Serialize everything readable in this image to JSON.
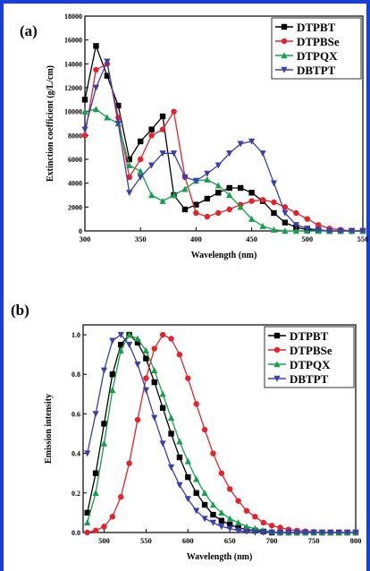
{
  "chart_data": [
    {
      "type": "line",
      "panel_label": "(a)",
      "x_label": "Wavelength (nm)",
      "y_label": "Extinction coefficient (g/L/cm)",
      "x": [
        300,
        310,
        320,
        330,
        340,
        350,
        360,
        370,
        380,
        390,
        400,
        410,
        420,
        430,
        440,
        450,
        460,
        470,
        480,
        490,
        500,
        510,
        520,
        530,
        540,
        550
      ],
      "series": [
        {
          "name": "DTPBT",
          "color": "#000000",
          "marker": "square",
          "values": [
            11000,
            15500,
            13000,
            10500,
            6000,
            7500,
            8500,
            9600,
            3000,
            1800,
            2200,
            2700,
            3200,
            3600,
            3600,
            3200,
            2500,
            1500,
            700,
            300,
            100,
            50,
            0,
            0,
            0,
            0
          ]
        },
        {
          "name": "DTPBSe",
          "color": "#e8202a",
          "marker": "circle",
          "values": [
            8000,
            13500,
            14000,
            9500,
            4500,
            6000,
            8000,
            8500,
            10000,
            4500,
            1500,
            1200,
            1500,
            1800,
            2200,
            2500,
            2600,
            2400,
            2000,
            1500,
            1000,
            500,
            200,
            100,
            0,
            0
          ]
        },
        {
          "name": "DTPQX",
          "color": "#12a04a",
          "marker": "triangle-up",
          "values": [
            10000,
            10200,
            9500,
            9000,
            5500,
            5000,
            3000,
            2500,
            3000,
            3500,
            4200,
            4300,
            3800,
            3000,
            2000,
            1000,
            400,
            100,
            0,
            0,
            0,
            0,
            0,
            0,
            0,
            0
          ]
        },
        {
          "name": "DBTPT",
          "color": "#3a3fb0",
          "marker": "triangle-down",
          "values": [
            8500,
            12000,
            14200,
            9000,
            3200,
            4500,
            5500,
            6500,
            6500,
            4500,
            4200,
            4800,
            5500,
            6500,
            7300,
            7500,
            6500,
            4000,
            1500,
            500,
            200,
            100,
            0,
            0,
            0,
            0
          ]
        }
      ],
      "xlim": [
        300,
        550
      ],
      "xticks": [
        300,
        350,
        400,
        450,
        500,
        550
      ],
      "ylim": [
        0,
        18000
      ],
      "yticks": [
        0,
        2000,
        4000,
        6000,
        8000,
        10000,
        12000,
        14000,
        16000,
        18000
      ],
      "legend": "upper right"
    },
    {
      "type": "line",
      "panel_label": "(b)",
      "x_label": "Wavelength (nm)",
      "y_label": "Emission intensity",
      "x": [
        480,
        490,
        500,
        510,
        520,
        530,
        540,
        550,
        560,
        570,
        580,
        590,
        600,
        610,
        620,
        630,
        640,
        650,
        660,
        670,
        680,
        690,
        700,
        710,
        720,
        730,
        740,
        750,
        760,
        770,
        780,
        790,
        800
      ],
      "series": [
        {
          "name": "DTPBT",
          "color": "#000000",
          "marker": "square",
          "values": [
            0.1,
            0.3,
            0.55,
            0.8,
            0.95,
            1.0,
            0.96,
            0.88,
            0.76,
            0.63,
            0.5,
            0.38,
            0.28,
            0.2,
            0.14,
            0.09,
            0.06,
            0.04,
            0.025,
            0.015,
            0.01,
            0.005,
            0,
            0,
            0,
            0,
            0,
            0,
            0,
            0,
            0,
            0,
            0
          ]
        },
        {
          "name": "DTPBSe",
          "color": "#e8202a",
          "marker": "circle",
          "values": [
            0,
            0.01,
            0.03,
            0.08,
            0.18,
            0.35,
            0.57,
            0.78,
            0.93,
            1.0,
            0.98,
            0.9,
            0.78,
            0.65,
            0.52,
            0.4,
            0.3,
            0.22,
            0.16,
            0.11,
            0.08,
            0.05,
            0.035,
            0.025,
            0.015,
            0.01,
            0.006,
            0.003,
            0,
            0,
            0,
            0,
            0
          ]
        },
        {
          "name": "DTPQX",
          "color": "#12a04a",
          "marker": "triangle-up",
          "values": [
            0.05,
            0.2,
            0.45,
            0.72,
            0.92,
            1.0,
            0.98,
            0.92,
            0.82,
            0.7,
            0.58,
            0.46,
            0.36,
            0.27,
            0.2,
            0.14,
            0.1,
            0.07,
            0.05,
            0.03,
            0.02,
            0.01,
            0.005,
            0,
            0,
            0,
            0,
            0,
            0,
            0,
            0,
            0,
            0
          ]
        },
        {
          "name": "DBTPT",
          "color": "#3a3fb0",
          "marker": "triangle-down",
          "values": [
            0.4,
            0.6,
            0.82,
            0.97,
            1.0,
            0.95,
            0.85,
            0.72,
            0.58,
            0.45,
            0.33,
            0.24,
            0.17,
            0.11,
            0.07,
            0.05,
            0.03,
            0.02,
            0.01,
            0.005,
            0,
            0,
            0,
            0,
            0,
            0,
            0,
            0,
            0,
            0,
            0,
            0,
            0
          ]
        }
      ],
      "xlim": [
        475,
        800
      ],
      "xticks": [
        500,
        550,
        600,
        650,
        700,
        750,
        800
      ],
      "ylim": [
        0,
        1.05
      ],
      "yticks": [
        {
          "value": 0,
          "label": "0.0"
        },
        0.2,
        0.4,
        0.6,
        0.8,
        {
          "value": 1,
          "label": "1.0"
        }
      ],
      "legend": "upper right"
    }
  ]
}
